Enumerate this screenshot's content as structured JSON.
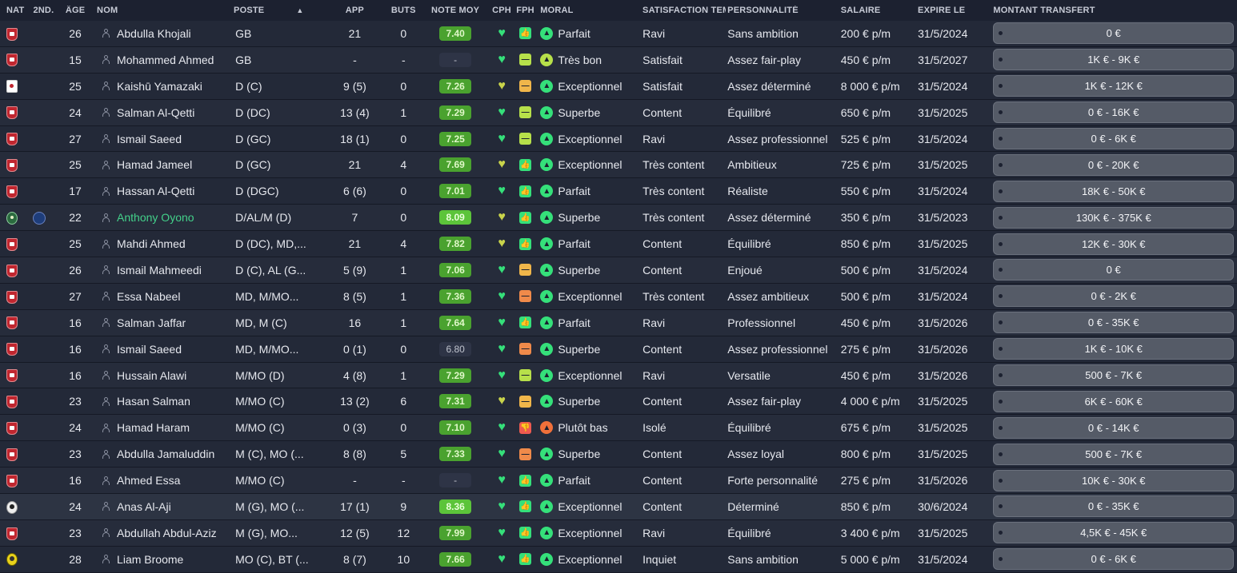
{
  "headers": {
    "nat": "NAT",
    "nat2": "2ND...",
    "age": "ÂGE",
    "nom": "NOM",
    "poste": "POSTE",
    "app": "APP",
    "buts": "BUTS",
    "note": "NOTE MOY",
    "cph": "CPH",
    "fph": "FPH",
    "moral": "MORAL",
    "satisfaction": "SATISFACTION TEM...",
    "personnalite": "PERSONNALITÉ",
    "salaire": "SALAIRE",
    "expire": "EXPIRE LE",
    "transfert": "MONTANT TRANSFERT",
    "sort_icon": "▲"
  },
  "colors": {
    "background": "#1c2130",
    "row": "#232938",
    "green_accent": "#35e07a",
    "name_highlight": "#43d18a"
  },
  "players": [
    {
      "flag": "bahrain",
      "flag2": "",
      "age": "26",
      "name": "Abdulla Khojali",
      "poste": "GB",
      "app": "21",
      "buts": "0",
      "note": "7.40",
      "note_style": "g",
      "cph": "g",
      "fph": "thumb",
      "fph_icon": "👍",
      "moral_icon": "g",
      "moral": "Parfait",
      "sat": "Ravi",
      "pers": "Sans ambition",
      "sal": "200 € p/m",
      "exp": "31/5/2024",
      "tr": "0 €"
    },
    {
      "flag": "bahrain",
      "flag2": "",
      "age": "15",
      "name": "Mohammed Ahmed",
      "poste": "GB",
      "app": "-",
      "buts": "-",
      "note": "-",
      "note_style": "dash",
      "cph": "g",
      "fph": "eq",
      "fph_icon": "—",
      "moral_icon": "y",
      "moral": "Très bon",
      "sat": "Satisfait",
      "pers": "Assez fair-play",
      "sal": "450 € p/m",
      "exp": "31/5/2027",
      "tr": "1K € - 9K €"
    },
    {
      "flag": "japan",
      "flag2": "",
      "age": "25",
      "name": "Kaishū Yamazaki",
      "poste": "D (C)",
      "app": "9 (5)",
      "buts": "0",
      "note": "7.26",
      "note_style": "g",
      "cph": "y",
      "fph": "minus",
      "fph_icon": "—",
      "moral_icon": "g",
      "moral": "Exceptionnel",
      "sat": "Satisfait",
      "pers": "Assez déterminé",
      "sal": "8 000 € p/m",
      "exp": "31/5/2024",
      "tr": "1K € - 12K €"
    },
    {
      "flag": "bahrain",
      "flag2": "",
      "age": "24",
      "name": "Salman Al-Qetti",
      "poste": "D (DC)",
      "app": "13 (4)",
      "buts": "1",
      "note": "7.29",
      "note_style": "g",
      "cph": "g",
      "fph": "eq",
      "fph_icon": "—",
      "moral_icon": "g",
      "moral": "Superbe",
      "sat": "Content",
      "pers": "Équilibré",
      "sal": "650 € p/m",
      "exp": "31/5/2025",
      "tr": "0 € - 16K €"
    },
    {
      "flag": "bahrain",
      "flag2": "",
      "age": "27",
      "name": "Ismail Saeed",
      "poste": "D (GC)",
      "app": "18 (1)",
      "buts": "0",
      "note": "7.25",
      "note_style": "g",
      "cph": "g",
      "fph": "eq",
      "fph_icon": "—",
      "moral_icon": "g",
      "moral": "Exceptionnel",
      "sat": "Ravi",
      "pers": "Assez professionnel",
      "sal": "525 € p/m",
      "exp": "31/5/2024",
      "tr": "0 € - 6K €"
    },
    {
      "flag": "bahrain",
      "flag2": "",
      "age": "25",
      "name": "Hamad Jameel",
      "poste": "D (GC)",
      "app": "21",
      "buts": "4",
      "note": "7.69",
      "note_style": "g",
      "cph": "y",
      "fph": "thumb",
      "fph_icon": "👍",
      "moral_icon": "g",
      "moral": "Exceptionnel",
      "sat": "Très content",
      "pers": "Ambitieux",
      "sal": "725 € p/m",
      "exp": "31/5/2025",
      "tr": "0 € - 20K €"
    },
    {
      "flag": "bahrain",
      "flag2": "",
      "age": "17",
      "name": "Hassan Al-Qetti",
      "poste": "D (DGC)",
      "app": "6 (6)",
      "buts": "0",
      "note": "7.01",
      "note_style": "g",
      "cph": "g",
      "fph": "thumb",
      "fph_icon": "👍",
      "moral_icon": "g",
      "moral": "Parfait",
      "sat": "Très content",
      "pers": "Réaliste",
      "sal": "550 € p/m",
      "exp": "31/5/2024",
      "tr": "18K € - 50K €"
    },
    {
      "flag": "green",
      "flag2": "france",
      "age": "22",
      "name": "Anthony Oyono",
      "name_style": "green",
      "poste": "D/AL/M (D)",
      "app": "7",
      "buts": "0",
      "note": "8.09",
      "note_style": "g2",
      "cph": "y",
      "fph": "thumb",
      "fph_icon": "👍",
      "moral_icon": "g",
      "moral": "Superbe",
      "sat": "Très content",
      "pers": "Assez déterminé",
      "sal": "350 € p/m",
      "exp": "31/5/2023",
      "tr": "130K € - 375K €"
    },
    {
      "flag": "bahrain",
      "flag2": "",
      "age": "25",
      "name": "Mahdi Ahmed",
      "poste": "D (DC), MD,...",
      "app": "21",
      "buts": "4",
      "note": "7.82",
      "note_style": "g",
      "cph": "y",
      "fph": "thumb",
      "fph_icon": "👍",
      "moral_icon": "g",
      "moral": "Parfait",
      "sat": "Content",
      "pers": "Équilibré",
      "sal": "850 € p/m",
      "exp": "31/5/2025",
      "tr": "12K € - 30K €"
    },
    {
      "flag": "bahrain",
      "flag2": "",
      "age": "26",
      "name": "Ismail Mahmeedi",
      "poste": "D (C), AL (G...",
      "app": "5 (9)",
      "buts": "1",
      "note": "7.06",
      "note_style": "g",
      "cph": "g",
      "fph": "minus",
      "fph_icon": "—",
      "moral_icon": "g",
      "moral": "Superbe",
      "sat": "Content",
      "pers": "Enjoué",
      "sal": "500 € p/m",
      "exp": "31/5/2024",
      "tr": "0 €"
    },
    {
      "flag": "bahrain",
      "flag2": "",
      "age": "27",
      "name": "Essa Nabeel",
      "poste": "MD, M/MO...",
      "app": "8 (5)",
      "buts": "1",
      "note": "7.36",
      "note_style": "g",
      "cph": "g",
      "fph": "minus2",
      "fph_icon": "—",
      "moral_icon": "g",
      "moral": "Exceptionnel",
      "sat": "Très content",
      "pers": "Assez ambitieux",
      "sal": "500 € p/m",
      "exp": "31/5/2024",
      "tr": "0 € - 2K €"
    },
    {
      "flag": "bahrain",
      "flag2": "",
      "age": "16",
      "name": "Salman Jaffar",
      "poste": "MD, M (C)",
      "app": "16",
      "buts": "1",
      "note": "7.64",
      "note_style": "g",
      "cph": "g",
      "fph": "thumb",
      "fph_icon": "👍",
      "moral_icon": "g",
      "moral": "Parfait",
      "sat": "Ravi",
      "pers": "Professionnel",
      "sal": "450 € p/m",
      "exp": "31/5/2026",
      "tr": "0 € - 35K €"
    },
    {
      "flag": "bahrain",
      "flag2": "",
      "age": "16",
      "name": "Ismail Saeed",
      "poste": "MD, M/MO...",
      "app": "0 (1)",
      "buts": "0",
      "note": "6.80",
      "note_style": "gray",
      "cph": "g",
      "fph": "minus2",
      "fph_icon": "—",
      "moral_icon": "g",
      "moral": "Superbe",
      "sat": "Content",
      "pers": "Assez professionnel",
      "sal": "275 € p/m",
      "exp": "31/5/2026",
      "tr": "1K € - 10K €"
    },
    {
      "flag": "bahrain",
      "flag2": "",
      "age": "16",
      "name": "Hussain Alawi",
      "poste": "M/MO (D)",
      "app": "4 (8)",
      "buts": "1",
      "note": "7.29",
      "note_style": "g",
      "cph": "g",
      "fph": "eq",
      "fph_icon": "—",
      "moral_icon": "g",
      "moral": "Exceptionnel",
      "sat": "Ravi",
      "pers": "Versatile",
      "sal": "450 € p/m",
      "exp": "31/5/2026",
      "tr": "500 € - 7K €"
    },
    {
      "flag": "bahrain",
      "flag2": "",
      "age": "23",
      "name": "Hasan Salman",
      "poste": "M/MO (C)",
      "app": "13 (2)",
      "buts": "6",
      "note": "7.31",
      "note_style": "g",
      "cph": "y",
      "fph": "minus",
      "fph_icon": "—",
      "moral_icon": "g",
      "moral": "Superbe",
      "sat": "Content",
      "pers": "Assez fair-play",
      "sal": "4 000 € p/m",
      "exp": "31/5/2025",
      "tr": "6K € - 60K €"
    },
    {
      "flag": "bahrain",
      "flag2": "",
      "age": "24",
      "name": "Hamad Haram",
      "poste": "M/MO (C)",
      "app": "0 (3)",
      "buts": "0",
      "note": "7.10",
      "note_style": "g",
      "cph": "g",
      "fph": "down",
      "fph_icon": "👎",
      "moral_icon": "r",
      "moral": "Plutôt bas",
      "sat": "Isolé",
      "pers": "Équilibré",
      "sal": "675 € p/m",
      "exp": "31/5/2025",
      "tr": "0 € - 14K €"
    },
    {
      "flag": "bahrain",
      "flag2": "",
      "age": "23",
      "name": "Abdulla Jamaluddin",
      "poste": "M (C), MO (...",
      "app": "8 (8)",
      "buts": "5",
      "note": "7.33",
      "note_style": "g",
      "cph": "g",
      "fph": "minus2",
      "fph_icon": "—",
      "moral_icon": "g",
      "moral": "Superbe",
      "sat": "Content",
      "pers": "Assez loyal",
      "sal": "800 € p/m",
      "exp": "31/5/2025",
      "tr": "500 € - 7K €"
    },
    {
      "flag": "bahrain",
      "flag2": "",
      "age": "16",
      "name": "Ahmed Essa",
      "poste": "M/MO (C)",
      "app": "-",
      "buts": "-",
      "note": "-",
      "note_style": "dash",
      "cph": "g",
      "fph": "thumb",
      "fph_icon": "👍",
      "moral_icon": "g",
      "moral": "Parfait",
      "sat": "Content",
      "pers": "Forte personnalité",
      "sal": "275 € p/m",
      "exp": "31/5/2026",
      "tr": "10K € - 30K €"
    },
    {
      "flag": "black",
      "flag2": "",
      "age": "24",
      "name": "Anas Al-Aji",
      "poste": "M (G), MO (...",
      "app": "17 (1)",
      "buts": "9",
      "note": "8.36",
      "note_style": "g2",
      "cph": "g",
      "fph": "thumb",
      "fph_icon": "👍",
      "moral_icon": "g",
      "moral": "Exceptionnel",
      "sat": "Content",
      "pers": "Déterminé",
      "sal": "850 € p/m",
      "exp": "30/6/2024",
      "tr": "0 € - 35K €",
      "row_style": "hl"
    },
    {
      "flag": "bahrain",
      "flag2": "",
      "age": "23",
      "name": "Abdullah Abdul-Aziz",
      "poste": "M (G), MO...",
      "app": "12 (5)",
      "buts": "12",
      "note": "7.99",
      "note_style": "g",
      "cph": "g",
      "fph": "thumb",
      "fph_icon": "👍",
      "moral_icon": "g",
      "moral": "Exceptionnel",
      "sat": "Ravi",
      "pers": "Équilibré",
      "sal": "3 400 € p/m",
      "exp": "31/5/2025",
      "tr": "4,5K € - 45K €"
    },
    {
      "flag": "yellow",
      "flag2": "",
      "age": "28",
      "name": "Liam Broome",
      "poste": "MO (C), BT (...",
      "app": "8 (7)",
      "buts": "10",
      "note": "7.66",
      "note_style": "g",
      "cph": "g",
      "fph": "thumb",
      "fph_icon": "👍",
      "moral_icon": "g",
      "moral": "Exceptionnel",
      "sat": "Inquiet",
      "pers": "Sans ambition",
      "sal": "5 000 € p/m",
      "exp": "31/5/2024",
      "tr": "0 € - 6K €"
    }
  ]
}
